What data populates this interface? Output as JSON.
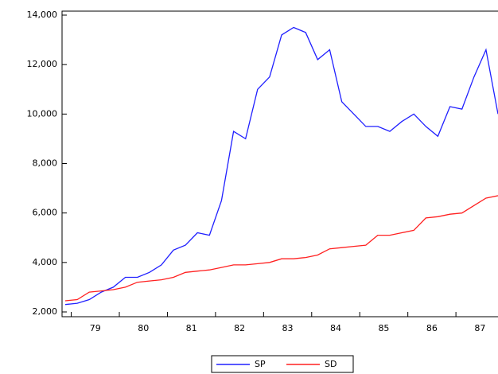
{
  "chart_data": {
    "type": "line",
    "categories": [
      null,
      null,
      "79",
      null,
      null,
      null,
      "80",
      null,
      null,
      null,
      "81",
      null,
      null,
      null,
      "82",
      null,
      null,
      null,
      "83",
      null,
      null,
      null,
      "84",
      null,
      null,
      null,
      "85",
      null,
      null,
      null,
      "86",
      null,
      null,
      null,
      "87",
      null,
      null
    ],
    "series": [
      {
        "name": "SP",
        "color": "#2020ff",
        "values": [
          2300,
          2350,
          2500,
          2800,
          3000,
          3400,
          3400,
          3600,
          3900,
          4500,
          4700,
          5200,
          5100,
          6500,
          9300,
          9000,
          11000,
          11500,
          13200,
          13500,
          13300,
          12200,
          12600,
          10500,
          10000,
          9500,
          9500,
          9300,
          9700,
          10000,
          9500,
          9100,
          10300,
          10200,
          11500,
          12600,
          10000
        ]
      },
      {
        "name": "SD",
        "color": "#ff2020",
        "values": [
          2450,
          2500,
          2800,
          2850,
          2900,
          3000,
          3200,
          3250,
          3300,
          3400,
          3600,
          3650,
          3700,
          3800,
          3900,
          3900,
          3950,
          4000,
          4150,
          4150,
          4200,
          4300,
          4550,
          4600,
          4650,
          4700,
          5100,
          5100,
          5200,
          5300,
          5800,
          5850,
          5950,
          6000,
          6300,
          6600,
          6700
        ]
      }
    ],
    "ylim": [
      2000,
      14000
    ],
    "yticks": [
      {
        "value": 2000,
        "label": "2,000"
      },
      {
        "value": 4000,
        "label": "4,000"
      },
      {
        "value": 6000,
        "label": "6,000"
      },
      {
        "value": 8000,
        "label": "8,000"
      },
      {
        "value": 10000,
        "label": "10,000"
      },
      {
        "value": 12000,
        "label": "12,000"
      },
      {
        "value": 14000,
        "label": "14,000"
      }
    ]
  }
}
